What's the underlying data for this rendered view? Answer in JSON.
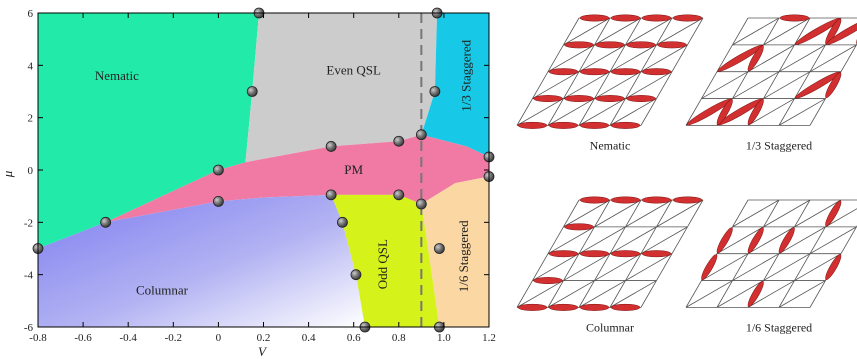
{
  "phase_diagram": {
    "xlabel": "V",
    "ylabel": "μ",
    "x_ticks": [
      "-0.8",
      "-0.6",
      "-0.4",
      "-0.2",
      "0",
      "0.2",
      "0.4",
      "0.6",
      "0.8",
      "1.0",
      "1.2"
    ],
    "y_ticks": [
      "6",
      "4",
      "2",
      "0",
      "-2",
      "-4",
      "-6"
    ],
    "regions": [
      {
        "id": "nematic",
        "label": "Nematic",
        "color": "#22eba9"
      },
      {
        "id": "even-qsl",
        "label": "Even QSL",
        "color": "#cccccc"
      },
      {
        "id": "third-staggered",
        "label": "1/3 Staggered",
        "color": "#17c9e6"
      },
      {
        "id": "pm",
        "label": "PM",
        "color": "#f07aa3"
      },
      {
        "id": "columnar",
        "label": "Columnar",
        "color": "#8f8ff1"
      },
      {
        "id": "odd-qsl",
        "label": "Odd QSL",
        "color": "#d5f21a"
      },
      {
        "id": "sixth-staggered",
        "label": "1/6 Staggered",
        "color": "#fbd7a4"
      }
    ],
    "phase_points": [
      {
        "V": 0.18,
        "mu": 6.0
      },
      {
        "V": 0.15,
        "mu": 3.0
      },
      {
        "V": 0.0,
        "mu": 0.0
      },
      {
        "V": 0.0,
        "mu": -1.2
      },
      {
        "V": -0.5,
        "mu": -2.0
      },
      {
        "V": -0.8,
        "mu": -3.0
      },
      {
        "V": 0.5,
        "mu": 0.9
      },
      {
        "V": 0.5,
        "mu": -0.95
      },
      {
        "V": 0.55,
        "mu": -2.0
      },
      {
        "V": 0.61,
        "mu": -4.0
      },
      {
        "V": 0.65,
        "mu": -6.0
      },
      {
        "V": 0.8,
        "mu": 1.1
      },
      {
        "V": 0.8,
        "mu": -0.95
      },
      {
        "V": 0.9,
        "mu": 1.35
      },
      {
        "V": 0.9,
        "mu": -1.3
      },
      {
        "V": 0.97,
        "mu": 6.0
      },
      {
        "V": 0.96,
        "mu": 3.0
      },
      {
        "V": 1.2,
        "mu": 0.5
      },
      {
        "V": 1.2,
        "mu": -0.25
      },
      {
        "V": 0.98,
        "mu": -3.0
      },
      {
        "V": 0.98,
        "mu": -6.0
      }
    ],
    "dashed_line_V": 0.9
  },
  "lattice_panels": [
    {
      "caption": "Nematic"
    },
    {
      "caption": "1/3 Staggered"
    },
    {
      "caption": "Columnar"
    },
    {
      "caption": "1/6 Staggered"
    }
  ],
  "colors": {
    "dimer": "#d23030",
    "lattice": "#555555",
    "node": "#666666"
  }
}
